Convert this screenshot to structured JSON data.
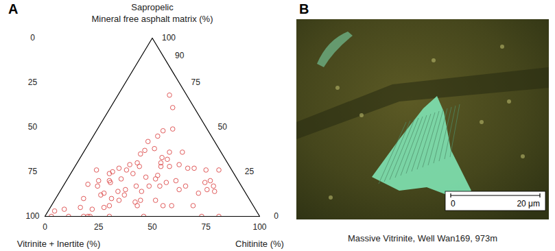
{
  "chart_data": {
    "type": "ternary",
    "panel_label": "A",
    "title_lines": [
      "Sapropelic",
      "Mineral free asphalt matrix (%)"
    ],
    "left_label": "Vitrinite + Inertite (%)",
    "right_label": "Chitinite (%)",
    "range": [
      0,
      100
    ],
    "vitrinite_inertite_ticks": [
      0,
      25,
      50,
      75,
      100
    ],
    "chitinite_ticks": [
      0,
      25,
      50,
      75,
      100
    ],
    "sapropelic_ticks": [
      0,
      25,
      50,
      75,
      90,
      100
    ],
    "sapropelic": [
      68,
      61,
      48,
      49,
      45,
      42,
      37,
      38,
      36,
      33,
      32,
      30,
      36,
      28,
      28,
      35,
      30,
      28,
      29,
      26,
      27,
      24,
      21,
      24,
      22,
      21,
      23,
      19,
      20,
      27,
      27,
      26,
      26,
      20,
      19,
      17,
      14,
      13,
      15,
      17,
      15,
      17,
      17,
      14,
      17,
      15,
      14,
      19,
      20,
      26,
      20,
      17,
      18,
      13,
      12,
      10,
      9,
      12,
      8,
      9,
      9,
      6,
      6,
      5,
      4,
      5,
      3,
      4,
      0,
      0,
      0,
      0,
      0,
      0,
      0,
      0,
      0,
      25,
      29,
      10,
      6,
      6,
      6
    ],
    "chitinite": [
      24,
      29,
      31,
      35,
      30,
      27,
      28,
      32,
      40,
      38,
      41,
      39,
      46,
      44,
      40,
      27,
      28,
      30,
      25,
      25,
      21,
      18,
      25,
      29,
      36,
      41,
      41,
      47,
      51,
      53,
      56,
      62,
      68,
      67,
      65,
      70,
      72,
      65,
      68,
      57,
      55,
      45,
      40,
      38,
      34,
      30,
      27,
      21,
      20,
      11,
      15,
      16,
      11,
      21,
      20,
      26,
      30,
      31,
      38,
      40,
      47,
      40,
      27,
      25,
      20,
      14,
      3,
      7,
      3,
      11,
      18,
      20,
      21,
      30,
      46,
      73,
      81,
      19,
      48,
      13,
      52,
      56,
      66
    ],
    "vitrinite_inertite": [
      8,
      10,
      21,
      16,
      25,
      31,
      35,
      30,
      24,
      29,
      27,
      31,
      18,
      28,
      32,
      38,
      42,
      42,
      46,
      49,
      52,
      58,
      54,
      47,
      42,
      38,
      36,
      34,
      29,
      20,
      17,
      12,
      6,
      13,
      16,
      13,
      14,
      22,
      17,
      26,
      30,
      38,
      43,
      48,
      49,
      55,
      59,
      60,
      60,
      63,
      65,
      67,
      71,
      66,
      68,
      64,
      61,
      57,
      54,
      51,
      44,
      54,
      67,
      70,
      76,
      81,
      94,
      89,
      97,
      89,
      82,
      80,
      79,
      70,
      54,
      27,
      19,
      56,
      23,
      77,
      42,
      38,
      28
    ],
    "color": "#e05a5a",
    "marker": "circle"
  },
  "image_panel": {
    "panel_label": "B",
    "caption": "Massive Vitrinite, Well Wan169, 973m",
    "scale_bar": {
      "ticks": [
        0,
        {
          "value": 20,
          "label": "20 μm"
        }
      ]
    }
  }
}
